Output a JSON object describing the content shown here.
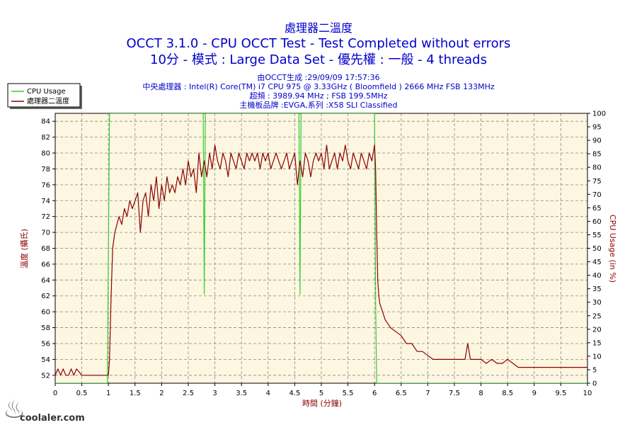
{
  "chart_data": {
    "type": "line",
    "title": "處理器二溫度",
    "subtitle_1": "OCCT 3.1.0 - CPU OCCT Test - Test Completed without errors",
    "subtitle_2": "10分 - 模式 : Large Data Set - 優先權 : 一般 - 4 threads",
    "info_lines": [
      "由OCCT生成 :29/09/09 17:57:36",
      "中央處理器 : Intel(R) Core(TM) i7 CPU 975 @ 3.33GHz ( Bloomfield ) 2666 MHz FSB 133MHz",
      "超頻 : 3989.94 MHz ; FSB 199.5MHz",
      "主機板品牌 :EVGA,系列 :X58 SLI Classified"
    ],
    "xlabel": "時間 (分鐘)",
    "ylabel": "溫度 (攝氏)",
    "y2label": "CPU Usage (in %)",
    "xlim": [
      0,
      10
    ],
    "ylim": [
      51,
      85
    ],
    "y2lim": [
      0,
      100
    ],
    "x_ticks": [
      "0",
      "0.5",
      "1",
      "1.5",
      "2",
      "2.5",
      "3",
      "3.5",
      "4",
      "4.5",
      "5",
      "5.5",
      "6",
      "6.5",
      "7",
      "7.5",
      "8",
      "8.5",
      "9",
      "9.5",
      "10"
    ],
    "y_ticks": [
      "52",
      "54",
      "56",
      "58",
      "60",
      "62",
      "64",
      "66",
      "68",
      "70",
      "72",
      "74",
      "76",
      "78",
      "80",
      "82",
      "84"
    ],
    "y2_ticks": [
      "0",
      "5",
      "10",
      "15",
      "20",
      "25",
      "30",
      "35",
      "40",
      "45",
      "50",
      "55",
      "60",
      "65",
      "70",
      "75",
      "80",
      "85",
      "90",
      "95",
      "100"
    ],
    "grid": true,
    "legend_position": "top-left",
    "series": [
      {
        "name": "CPU Usage",
        "axis": "right",
        "color": "#33cc33",
        "x": [
          0,
          0.98,
          1.0,
          1.02,
          1.04,
          1.5,
          2.78,
          2.8,
          2.82,
          2.84,
          4.58,
          4.6,
          4.62,
          4.64,
          6.0,
          6.02,
          6.04,
          6.06,
          10
        ],
        "y": [
          0,
          0,
          50,
          100,
          100,
          100,
          100,
          33,
          100,
          100,
          100,
          33,
          100,
          100,
          100,
          30,
          0,
          0,
          0
        ]
      },
      {
        "name": "處理器二溫度",
        "axis": "left",
        "color": "#8b0000",
        "x": [
          0,
          0.05,
          0.1,
          0.15,
          0.2,
          0.25,
          0.3,
          0.35,
          0.4,
          0.5,
          0.6,
          0.7,
          0.8,
          0.9,
          1.0,
          1.02,
          1.05,
          1.08,
          1.12,
          1.16,
          1.2,
          1.25,
          1.3,
          1.35,
          1.4,
          1.45,
          1.5,
          1.55,
          1.6,
          1.65,
          1.7,
          1.75,
          1.8,
          1.85,
          1.9,
          1.95,
          2.0,
          2.05,
          2.1,
          2.15,
          2.2,
          2.25,
          2.3,
          2.35,
          2.4,
          2.45,
          2.5,
          2.55,
          2.6,
          2.65,
          2.7,
          2.75,
          2.8,
          2.85,
          2.9,
          2.95,
          3.0,
          3.05,
          3.1,
          3.15,
          3.2,
          3.25,
          3.3,
          3.35,
          3.4,
          3.45,
          3.5,
          3.55,
          3.6,
          3.65,
          3.7,
          3.75,
          3.8,
          3.85,
          3.9,
          3.95,
          4.0,
          4.05,
          4.1,
          4.15,
          4.2,
          4.25,
          4.3,
          4.35,
          4.4,
          4.45,
          4.5,
          4.55,
          4.6,
          4.65,
          4.7,
          4.75,
          4.8,
          4.85,
          4.9,
          4.95,
          5.0,
          5.05,
          5.1,
          5.15,
          5.2,
          5.25,
          5.3,
          5.35,
          5.4,
          5.45,
          5.5,
          5.55,
          5.6,
          5.65,
          5.7,
          5.75,
          5.8,
          5.85,
          5.9,
          5.95,
          6.0,
          6.02,
          6.04,
          6.06,
          6.08,
          6.1,
          6.15,
          6.2,
          6.3,
          6.4,
          6.5,
          6.6,
          6.7,
          6.8,
          6.9,
          7.0,
          7.1,
          7.2,
          7.3,
          7.4,
          7.5,
          7.6,
          7.7,
          7.75,
          7.8,
          7.85,
          7.9,
          8.0,
          8.1,
          8.2,
          8.3,
          8.4,
          8.5,
          8.6,
          8.7,
          8.8,
          9.0,
          9.5,
          10.0
        ],
        "y": [
          52,
          52.8,
          52,
          52.8,
          52,
          52,
          52.8,
          52,
          52.8,
          52,
          52,
          52,
          52,
          52,
          52,
          54,
          62,
          68,
          70,
          71,
          72,
          71,
          73,
          72,
          74,
          73,
          74,
          75,
          70,
          74,
          75,
          72,
          76,
          74,
          77,
          73,
          76,
          74,
          77,
          75,
          76,
          75,
          77,
          76,
          78,
          76,
          79,
          77,
          78,
          75,
          80,
          77,
          79,
          77,
          80,
          78,
          81,
          79,
          78,
          80,
          79,
          77,
          80,
          79,
          78,
          80,
          79,
          78,
          80,
          79,
          80,
          79,
          80,
          78,
          80,
          79,
          80,
          78,
          79,
          80,
          79,
          78,
          79,
          80,
          78,
          79,
          80,
          76,
          79,
          77,
          80,
          79,
          77,
          79,
          80,
          79,
          80,
          78,
          81,
          78,
          79,
          80,
          78,
          80,
          79,
          81,
          79,
          78,
          80,
          79,
          78,
          80,
          79,
          78,
          80,
          79,
          81,
          78,
          70,
          64,
          62,
          61,
          60,
          59,
          58,
          57.5,
          57,
          56,
          56,
          55,
          55,
          54.5,
          54,
          54,
          54,
          54,
          54,
          54,
          54,
          56,
          54,
          54,
          54,
          54,
          53.5,
          54,
          53.5,
          53.5,
          54,
          53.5,
          53,
          53,
          53,
          53,
          53
        ]
      }
    ]
  },
  "watermark": "coolaler.com"
}
